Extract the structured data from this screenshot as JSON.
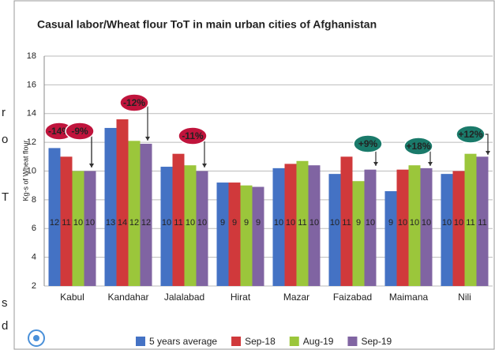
{
  "chart_data": {
    "type": "bar",
    "title": "Casual labor/Wheat  flour ToT in main urban cities of Afghanistan",
    "y_label": "Kg-s of Wheat flour",
    "categories": [
      "Kabul",
      "Kandahar",
      "Jalalabad",
      "Hirat",
      "Mazar",
      "Faizabad",
      "Maimana",
      "Nili"
    ],
    "series": [
      {
        "name": "5 years average",
        "color": "#4472c4",
        "values": [
          11.6,
          13.0,
          10.3,
          9.2,
          10.2,
          9.8,
          8.6,
          9.8
        ],
        "value_labels": [
          "12",
          "13",
          "10",
          "9",
          "10",
          "10",
          "9",
          "10"
        ]
      },
      {
        "name": "Sep-18",
        "color": "#d0393b",
        "values": [
          11.0,
          13.6,
          11.2,
          9.2,
          10.5,
          11.0,
          10.1,
          10.0
        ],
        "value_labels": [
          "11",
          "14",
          "11",
          "9",
          "10",
          "11",
          "10",
          "10"
        ]
      },
      {
        "name": "Aug-19",
        "color": "#9bc63b",
        "values": [
          10.0,
          12.1,
          10.4,
          9.0,
          10.7,
          9.3,
          10.4,
          11.2
        ],
        "value_labels": [
          "10",
          "12",
          "10",
          "9",
          "11",
          "9",
          "10",
          "11"
        ]
      },
      {
        "name": "Sep-19",
        "color": "#8064a2",
        "values": [
          10.0,
          11.9,
          10.0,
          8.9,
          10.4,
          10.1,
          10.2,
          11.0
        ],
        "value_labels": [
          "10",
          "12",
          "10",
          "9",
          "10",
          "10",
          "10",
          "11"
        ]
      }
    ],
    "annotations": [
      "-14%",
      "-9%",
      "-12%",
      "-11%",
      "+9%",
      "+18%",
      "+12%"
    ],
    "ylim": [
      2,
      18
    ],
    "yticks": [
      2,
      4,
      6,
      8,
      10,
      12,
      14,
      16,
      18
    ],
    "grid": true,
    "legend": "bottom"
  },
  "side_fragments": [
    "r",
    "o",
    "T",
    "s",
    "d"
  ]
}
